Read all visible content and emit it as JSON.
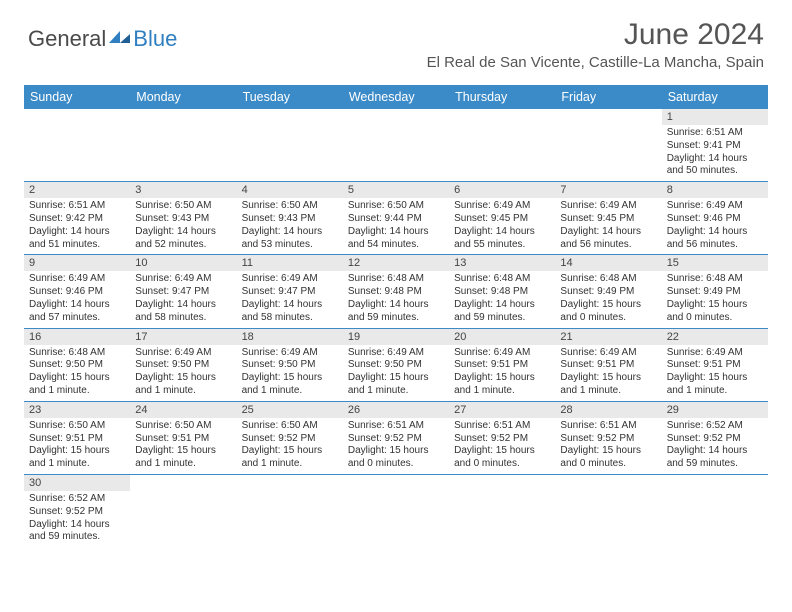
{
  "logo": {
    "text_general": "General",
    "text_blue": "Blue"
  },
  "title": "June 2024",
  "location": "El Real de San Vicente, Castille-La Mancha, Spain",
  "colors": {
    "header_bg": "#3b8bc9",
    "header_text": "#ffffff",
    "daynum_bg": "#e9e9e9",
    "border": "#3b8bc9",
    "text": "#333333",
    "title_text": "#555555"
  },
  "weekdays": [
    "Sunday",
    "Monday",
    "Tuesday",
    "Wednesday",
    "Thursday",
    "Friday",
    "Saturday"
  ],
  "weeks": [
    [
      null,
      null,
      null,
      null,
      null,
      null,
      {
        "n": "1",
        "sunrise": "6:51 AM",
        "sunset": "9:41 PM",
        "daylight": "14 hours and 50 minutes."
      }
    ],
    [
      {
        "n": "2",
        "sunrise": "6:51 AM",
        "sunset": "9:42 PM",
        "daylight": "14 hours and 51 minutes."
      },
      {
        "n": "3",
        "sunrise": "6:50 AM",
        "sunset": "9:43 PM",
        "daylight": "14 hours and 52 minutes."
      },
      {
        "n": "4",
        "sunrise": "6:50 AM",
        "sunset": "9:43 PM",
        "daylight": "14 hours and 53 minutes."
      },
      {
        "n": "5",
        "sunrise": "6:50 AM",
        "sunset": "9:44 PM",
        "daylight": "14 hours and 54 minutes."
      },
      {
        "n": "6",
        "sunrise": "6:49 AM",
        "sunset": "9:45 PM",
        "daylight": "14 hours and 55 minutes."
      },
      {
        "n": "7",
        "sunrise": "6:49 AM",
        "sunset": "9:45 PM",
        "daylight": "14 hours and 56 minutes."
      },
      {
        "n": "8",
        "sunrise": "6:49 AM",
        "sunset": "9:46 PM",
        "daylight": "14 hours and 56 minutes."
      }
    ],
    [
      {
        "n": "9",
        "sunrise": "6:49 AM",
        "sunset": "9:46 PM",
        "daylight": "14 hours and 57 minutes."
      },
      {
        "n": "10",
        "sunrise": "6:49 AM",
        "sunset": "9:47 PM",
        "daylight": "14 hours and 58 minutes."
      },
      {
        "n": "11",
        "sunrise": "6:49 AM",
        "sunset": "9:47 PM",
        "daylight": "14 hours and 58 minutes."
      },
      {
        "n": "12",
        "sunrise": "6:48 AM",
        "sunset": "9:48 PM",
        "daylight": "14 hours and 59 minutes."
      },
      {
        "n": "13",
        "sunrise": "6:48 AM",
        "sunset": "9:48 PM",
        "daylight": "14 hours and 59 minutes."
      },
      {
        "n": "14",
        "sunrise": "6:48 AM",
        "sunset": "9:49 PM",
        "daylight": "15 hours and 0 minutes."
      },
      {
        "n": "15",
        "sunrise": "6:48 AM",
        "sunset": "9:49 PM",
        "daylight": "15 hours and 0 minutes."
      }
    ],
    [
      {
        "n": "16",
        "sunrise": "6:48 AM",
        "sunset": "9:50 PM",
        "daylight": "15 hours and 1 minute."
      },
      {
        "n": "17",
        "sunrise": "6:49 AM",
        "sunset": "9:50 PM",
        "daylight": "15 hours and 1 minute."
      },
      {
        "n": "18",
        "sunrise": "6:49 AM",
        "sunset": "9:50 PM",
        "daylight": "15 hours and 1 minute."
      },
      {
        "n": "19",
        "sunrise": "6:49 AM",
        "sunset": "9:50 PM",
        "daylight": "15 hours and 1 minute."
      },
      {
        "n": "20",
        "sunrise": "6:49 AM",
        "sunset": "9:51 PM",
        "daylight": "15 hours and 1 minute."
      },
      {
        "n": "21",
        "sunrise": "6:49 AM",
        "sunset": "9:51 PM",
        "daylight": "15 hours and 1 minute."
      },
      {
        "n": "22",
        "sunrise": "6:49 AM",
        "sunset": "9:51 PM",
        "daylight": "15 hours and 1 minute."
      }
    ],
    [
      {
        "n": "23",
        "sunrise": "6:50 AM",
        "sunset": "9:51 PM",
        "daylight": "15 hours and 1 minute."
      },
      {
        "n": "24",
        "sunrise": "6:50 AM",
        "sunset": "9:51 PM",
        "daylight": "15 hours and 1 minute."
      },
      {
        "n": "25",
        "sunrise": "6:50 AM",
        "sunset": "9:52 PM",
        "daylight": "15 hours and 1 minute."
      },
      {
        "n": "26",
        "sunrise": "6:51 AM",
        "sunset": "9:52 PM",
        "daylight": "15 hours and 0 minutes."
      },
      {
        "n": "27",
        "sunrise": "6:51 AM",
        "sunset": "9:52 PM",
        "daylight": "15 hours and 0 minutes."
      },
      {
        "n": "28",
        "sunrise": "6:51 AM",
        "sunset": "9:52 PM",
        "daylight": "15 hours and 0 minutes."
      },
      {
        "n": "29",
        "sunrise": "6:52 AM",
        "sunset": "9:52 PM",
        "daylight": "14 hours and 59 minutes."
      }
    ],
    [
      {
        "n": "30",
        "sunrise": "6:52 AM",
        "sunset": "9:52 PM",
        "daylight": "14 hours and 59 minutes."
      },
      null,
      null,
      null,
      null,
      null,
      null
    ]
  ],
  "labels": {
    "sunrise": "Sunrise: ",
    "sunset": "Sunset: ",
    "daylight": "Daylight: "
  }
}
